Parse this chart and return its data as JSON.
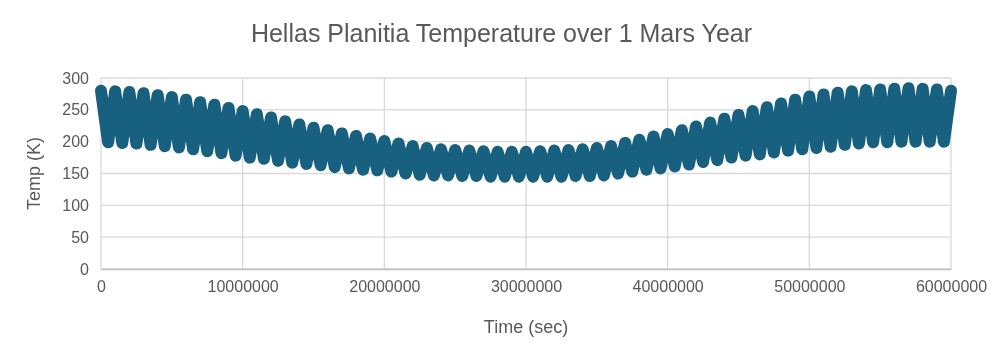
{
  "chart_data": {
    "type": "line",
    "title": "Hellas Planitia Temperature over 1 Mars Year",
    "xlabel": "Time (sec)",
    "ylabel": "Temp (K)",
    "xlim": [
      0,
      60000000
    ],
    "xticks": [
      0,
      10000000,
      20000000,
      30000000,
      40000000,
      50000000,
      60000000
    ],
    "ylim": [
      0,
      300
    ],
    "yticks": [
      0,
      50,
      100,
      150,
      200,
      250,
      300
    ],
    "grid": true,
    "x": [
      0,
      500000,
      1000000,
      1500000,
      2000000,
      2500000,
      3000000,
      3500000,
      4000000,
      4500000,
      5000000,
      5500000,
      6000000,
      6500000,
      7000000,
      7500000,
      8000000,
      8500000,
      9000000,
      9500000,
      10000000,
      10500000,
      11000000,
      11500000,
      12000000,
      12500000,
      13000000,
      13500000,
      14000000,
      14500000,
      15000000,
      15500000,
      16000000,
      16500000,
      17000000,
      17500000,
      18000000,
      18500000,
      19000000,
      19500000,
      20000000,
      20500000,
      21000000,
      21500000,
      22000000,
      22500000,
      23000000,
      23500000,
      24000000,
      24500000,
      25000000,
      25500000,
      26000000,
      26500000,
      27000000,
      27500000,
      28000000,
      28500000,
      29000000,
      29500000,
      30000000,
      30500000,
      31000000,
      31500000,
      32000000,
      32500000,
      33000000,
      33500000,
      34000000,
      34500000,
      35000000,
      35500000,
      36000000,
      36500000,
      37000000,
      37500000,
      38000000,
      38500000,
      39000000,
      39500000,
      40000000,
      40500000,
      41000000,
      41500000,
      42000000,
      42500000,
      43000000,
      43500000,
      44000000,
      44500000,
      45000000,
      45500000,
      46000000,
      46500000,
      47000000,
      47500000,
      48000000,
      48500000,
      49000000,
      49500000,
      50000000,
      50500000,
      51000000,
      51500000,
      52000000,
      52500000,
      53000000,
      53500000,
      54000000,
      54500000,
      55000000,
      55500000,
      56000000,
      56500000,
      57000000,
      57500000,
      58000000,
      58500000,
      59000000,
      59500000,
      60000000
    ],
    "series": [
      {
        "color": "#17607f",
        "values": [
          280,
          199,
          279,
          198,
          278,
          197,
          276,
          195,
          273,
          193,
          270,
          191,
          266,
          188,
          262,
          185,
          258,
          182,
          253,
          178,
          248,
          175,
          243,
          173,
          238,
          170,
          232,
          167,
          227,
          165,
          222,
          163,
          218,
          160,
          213,
          158,
          209,
          156,
          205,
          155,
          201,
          153,
          197,
          150,
          193,
          148,
          190,
          147,
          188,
          147,
          187,
          146,
          186,
          146,
          185,
          145,
          184,
          145,
          184,
          145,
          184,
          145,
          185,
          145,
          186,
          145,
          187,
          146,
          188,
          146,
          190,
          147,
          193,
          150,
          198,
          153,
          203,
          156,
          208,
          158,
          212,
          161,
          218,
          164,
          224,
          168,
          230,
          171,
          236,
          175,
          242,
          178,
          248,
          180,
          254,
          183,
          260,
          186,
          266,
          188,
          271,
          190,
          274,
          192,
          277,
          195,
          279,
          197,
          281,
          199,
          282,
          199,
          283,
          200,
          284,
          200,
          283,
          200,
          282,
          200,
          280
        ]
      }
    ]
  }
}
